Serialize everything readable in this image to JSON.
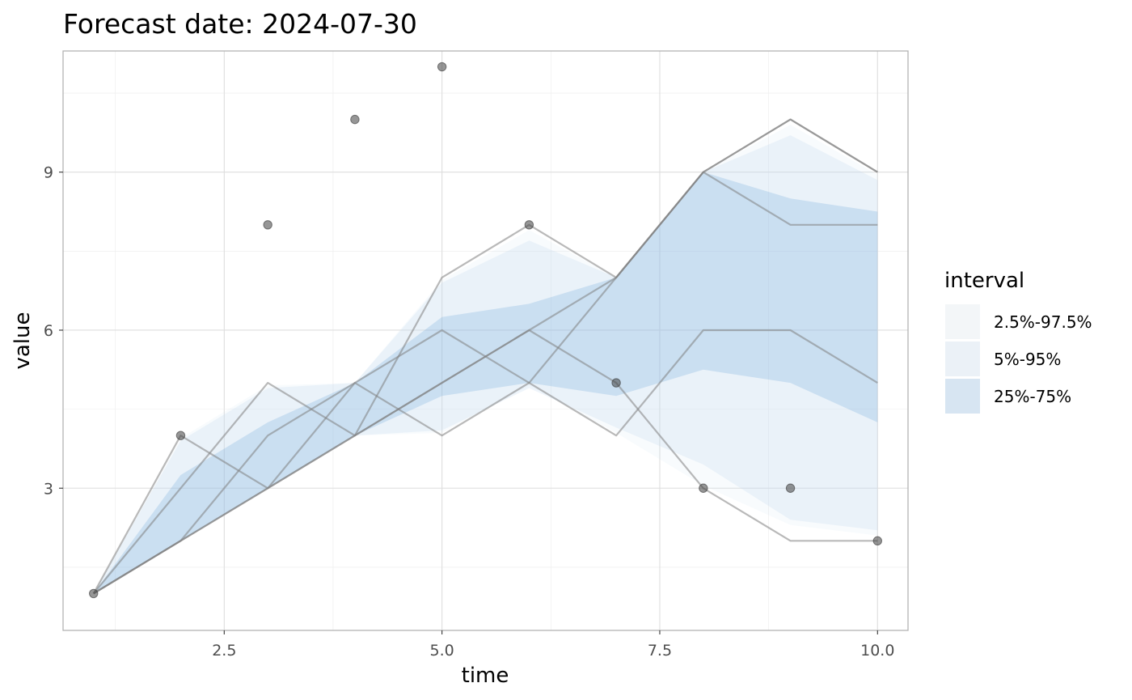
{
  "chart_data": {
    "type": "area",
    "title": "Forecast date: 2024-07-30",
    "xlabel": "time",
    "ylabel": "value",
    "xlim": [
      0.65,
      10.35
    ],
    "ylim": [
      0.3,
      11.3
    ],
    "x_ticks": [
      2.5,
      5.0,
      7.5,
      10.0
    ],
    "x_tick_labels": [
      "2.5",
      "5.0",
      "7.5",
      "10.0"
    ],
    "x_minor_ticks": [
      1.25,
      3.75,
      6.25,
      8.75
    ],
    "y_ticks": [
      3,
      6,
      9
    ],
    "y_tick_labels": [
      "3",
      "6",
      "9"
    ],
    "y_minor_ticks": [
      1.5,
      4.5,
      7.5,
      10.5
    ],
    "grid": true,
    "legend": {
      "title": "interval",
      "position": "right",
      "entries": [
        "2.5%-97.5%",
        "5%-95%",
        "25%-75%"
      ]
    },
    "x": [
      1,
      2,
      3,
      4,
      5,
      6,
      7,
      8,
      9,
      10
    ],
    "intervals": [
      {
        "name": "2.5%-97.5%",
        "color": "#c6dbef",
        "opacity": 0.12,
        "lower": [
          1,
          2,
          3,
          4,
          4.05,
          4.95,
          4.05,
          3.05,
          2.3,
          2.1
        ],
        "upper": [
          1,
          3.95,
          4.95,
          5,
          6.95,
          7.9,
          7,
          9,
          9.9,
          8.95
        ]
      },
      {
        "name": "5%-95%",
        "color": "#c6dbef",
        "opacity": 0.28,
        "lower": [
          1,
          2,
          3,
          4,
          4.1,
          4.9,
          4.15,
          3.45,
          2.4,
          2.2
        ],
        "upper": [
          1,
          3.9,
          4.9,
          5,
          6.9,
          7.7,
          7,
          9,
          9.7,
          8.85
        ]
      },
      {
        "name": "25%-75%",
        "color": "#5b9bd5",
        "opacity": 0.22,
        "lower": [
          1,
          2,
          3,
          4,
          4.75,
          5,
          4.75,
          5.25,
          5,
          4.25
        ],
        "upper": [
          1,
          3.25,
          4.25,
          5,
          6.25,
          6.5,
          7,
          9,
          8.5,
          8.25
        ]
      }
    ],
    "sample_lines": [
      {
        "values": [
          1,
          4,
          3,
          4,
          5,
          6,
          7,
          9,
          10,
          9
        ]
      },
      {
        "values": [
          1,
          3,
          5,
          4,
          7,
          8,
          7,
          9,
          8,
          8
        ]
      },
      {
        "values": [
          1,
          2,
          3,
          5,
          6,
          5,
          7,
          9,
          10,
          9
        ]
      },
      {
        "values": [
          1,
          2,
          4,
          5,
          4,
          5,
          4,
          6,
          6,
          5
        ]
      },
      {
        "values": [
          1,
          2,
          3,
          4,
          5,
          6,
          5,
          3,
          2,
          2
        ]
      }
    ],
    "observed": {
      "x": [
        1,
        2,
        3,
        4,
        5,
        6,
        7,
        8,
        9,
        10
      ],
      "y": [
        1,
        4,
        8,
        10,
        11,
        8,
        5,
        3,
        3,
        2
      ]
    },
    "colors": {
      "line": "#808080",
      "point": "#404040"
    }
  }
}
